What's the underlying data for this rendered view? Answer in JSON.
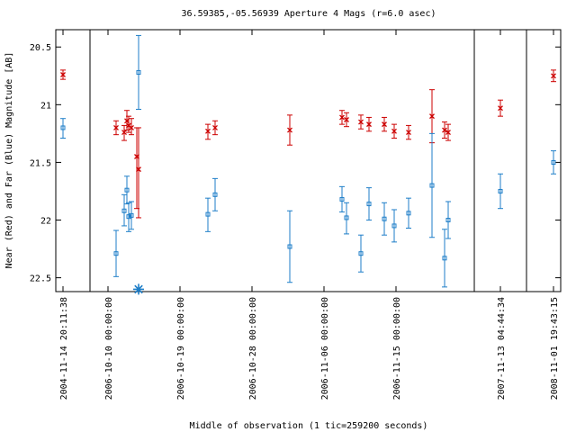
{
  "chart_data": {
    "type": "scatter",
    "title": "36.59385,-05.56939   Aperture 4 Mags (r=6.0 asec)",
    "xlabel": "Middle of observation (1 tic=259200 seconds)",
    "ylabel": "Near (Red) and Far (Blue) Magnitude [AB]",
    "ylim": [
      22.62,
      20.35
    ],
    "y_inverted": true,
    "xlim": [
      0,
      640
    ],
    "grid": false,
    "y_ticks": [
      20.5,
      21,
      21.5,
      22,
      22.5
    ],
    "y_tick_labels": [
      "20.5",
      "21",
      "21.5",
      "22",
      "22.5"
    ],
    "x_ticks": [
      {
        "x": 70,
        "label": "2004-11-14 20:11:38"
      },
      {
        "x": 120,
        "label": "2006-10-10 00:00:00"
      },
      {
        "x": 200,
        "label": "2006-10-19 00:00:00"
      },
      {
        "x": 280,
        "label": "2006-10-28 00:00:00"
      },
      {
        "x": 360,
        "label": "2006-11-06 00:00:00"
      },
      {
        "x": 440,
        "label": "2006-11-15 00:00:00"
      },
      {
        "x": 556,
        "label": "2007-11-13 04:44:34"
      },
      {
        "x": 615,
        "label": "2008-11-01 19:43:15"
      }
    ],
    "segment_breaks_x": [
      100,
      527,
      585
    ],
    "series": [
      {
        "marker": "x",
        "color": "#cc0000",
        "points": [
          {
            "x": 70,
            "y": 20.74,
            "lo": 20.7,
            "hi": 20.78
          },
          {
            "x": 129,
            "y": 21.2,
            "lo": 21.14,
            "hi": 21.26
          },
          {
            "x": 138,
            "y": 21.24,
            "lo": 21.18,
            "hi": 21.31
          },
          {
            "x": 141,
            "y": 21.14,
            "lo": 21.05,
            "hi": 21.22
          },
          {
            "x": 143,
            "y": 21.18,
            "lo": 21.1,
            "hi": 21.24
          },
          {
            "x": 146,
            "y": 21.2,
            "lo": 21.12,
            "hi": 21.26
          },
          {
            "x": 152,
            "y": 21.45,
            "lo": 21.2,
            "hi": 21.9
          },
          {
            "x": 154,
            "y": 21.56,
            "lo": 21.2,
            "hi": 21.98
          },
          {
            "x": 231,
            "y": 21.23,
            "lo": 21.17,
            "hi": 21.3
          },
          {
            "x": 239,
            "y": 21.2,
            "lo": 21.14,
            "hi": 21.26
          },
          {
            "x": 322,
            "y": 21.22,
            "lo": 21.09,
            "hi": 21.35
          },
          {
            "x": 380,
            "y": 21.11,
            "lo": 21.05,
            "hi": 21.17
          },
          {
            "x": 385,
            "y": 21.13,
            "lo": 21.07,
            "hi": 21.19
          },
          {
            "x": 401,
            "y": 21.15,
            "lo": 21.09,
            "hi": 21.21
          },
          {
            "x": 410,
            "y": 21.17,
            "lo": 21.11,
            "hi": 21.23
          },
          {
            "x": 427,
            "y": 21.17,
            "lo": 21.11,
            "hi": 21.23
          },
          {
            "x": 438,
            "y": 21.23,
            "lo": 21.17,
            "hi": 21.29
          },
          {
            "x": 454,
            "y": 21.24,
            "lo": 21.18,
            "hi": 21.3
          },
          {
            "x": 480,
            "y": 21.1,
            "lo": 20.87,
            "hi": 21.33
          },
          {
            "x": 494,
            "y": 21.22,
            "lo": 21.15,
            "hi": 21.29
          },
          {
            "x": 498,
            "y": 21.24,
            "lo": 21.17,
            "hi": 21.31
          },
          {
            "x": 556,
            "y": 21.03,
            "lo": 20.96,
            "hi": 21.1
          },
          {
            "x": 615,
            "y": 20.75,
            "lo": 20.7,
            "hi": 20.8
          }
        ]
      },
      {
        "marker": "square",
        "color": "#1e7ec8",
        "points": [
          {
            "x": 70,
            "y": 21.2,
            "lo": 21.12,
            "hi": 21.29
          },
          {
            "x": 129,
            "y": 22.29,
            "lo": 22.09,
            "hi": 22.49
          },
          {
            "x": 138,
            "y": 21.92,
            "lo": 21.78,
            "hi": 22.05
          },
          {
            "x": 141,
            "y": 21.74,
            "lo": 21.62,
            "hi": 21.86
          },
          {
            "x": 143,
            "y": 21.97,
            "lo": 21.85,
            "hi": 22.1
          },
          {
            "x": 146,
            "y": 21.96,
            "lo": 21.84,
            "hi": 22.08
          },
          {
            "x": 154,
            "y": 20.72,
            "lo": 20.4,
            "hi": 21.04
          },
          {
            "x": 231,
            "y": 21.95,
            "lo": 21.81,
            "hi": 22.1
          },
          {
            "x": 239,
            "y": 21.78,
            "lo": 21.64,
            "hi": 21.92
          },
          {
            "x": 322,
            "y": 22.23,
            "lo": 21.92,
            "hi": 22.54
          },
          {
            "x": 380,
            "y": 21.82,
            "lo": 21.71,
            "hi": 21.93
          },
          {
            "x": 385,
            "y": 21.98,
            "lo": 21.85,
            "hi": 22.12
          },
          {
            "x": 401,
            "y": 22.29,
            "lo": 22.13,
            "hi": 22.45
          },
          {
            "x": 410,
            "y": 21.86,
            "lo": 21.72,
            "hi": 22.0
          },
          {
            "x": 427,
            "y": 21.99,
            "lo": 21.85,
            "hi": 22.13
          },
          {
            "x": 438,
            "y": 22.05,
            "lo": 21.91,
            "hi": 22.19
          },
          {
            "x": 454,
            "y": 21.94,
            "lo": 21.81,
            "hi": 22.07
          },
          {
            "x": 480,
            "y": 21.7,
            "lo": 21.25,
            "hi": 22.15
          },
          {
            "x": 494,
            "y": 22.33,
            "lo": 22.08,
            "hi": 22.58
          },
          {
            "x": 498,
            "y": 22.0,
            "lo": 21.84,
            "hi": 22.16
          },
          {
            "x": 556,
            "y": 21.75,
            "lo": 21.6,
            "hi": 21.9
          },
          {
            "x": 615,
            "y": 21.5,
            "lo": 21.4,
            "hi": 21.6
          }
        ]
      },
      {
        "marker": "asterisk",
        "color": "#1e7ec8",
        "points": [
          {
            "x": 154,
            "y": 22.6
          }
        ]
      }
    ]
  }
}
